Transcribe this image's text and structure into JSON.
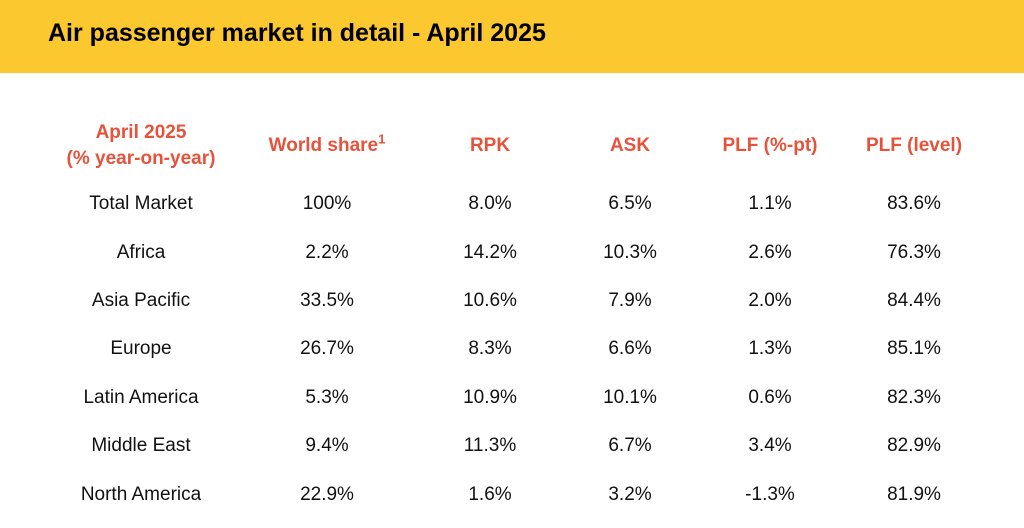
{
  "banner": {
    "title": "Air passenger market in detail - April 2025"
  },
  "colors": {
    "banner_bg": "#fbc82f",
    "header_text": "#e6533a",
    "body_text": "#111111"
  },
  "table": {
    "headers": {
      "region_line1": "April 2025",
      "region_line2": "(% year-on-year)",
      "world_share": "World share",
      "world_share_footnote": "1",
      "rpk": "RPK",
      "ask": "ASK",
      "plf_pt": "PLF (%-pt)",
      "plf_level": "PLF (level)"
    },
    "rows": [
      {
        "region": "Total Market",
        "world_share": "100%",
        "rpk": "8.0%",
        "ask": "6.5%",
        "plf_pt": "1.1%",
        "plf_level": "83.6%"
      },
      {
        "region": "Africa",
        "world_share": "2.2%",
        "rpk": "14.2%",
        "ask": "10.3%",
        "plf_pt": "2.6%",
        "plf_level": "76.3%"
      },
      {
        "region": "Asia Pacific",
        "world_share": "33.5%",
        "rpk": "10.6%",
        "ask": "7.9%",
        "plf_pt": "2.0%",
        "plf_level": "84.4%"
      },
      {
        "region": "Europe",
        "world_share": "26.7%",
        "rpk": "8.3%",
        "ask": "6.6%",
        "plf_pt": "1.3%",
        "plf_level": "85.1%"
      },
      {
        "region": "Latin America",
        "world_share": "5.3%",
        "rpk": "10.9%",
        "ask": "10.1%",
        "plf_pt": "0.6%",
        "plf_level": "82.3%"
      },
      {
        "region": "Middle East",
        "world_share": "9.4%",
        "rpk": "11.3%",
        "ask": "6.7%",
        "plf_pt": "3.4%",
        "plf_level": "82.9%"
      },
      {
        "region": "North America",
        "world_share": "22.9%",
        "rpk": "1.6%",
        "ask": "3.2%",
        "plf_pt": "-1.3%",
        "plf_level": "81.9%"
      }
    ]
  }
}
